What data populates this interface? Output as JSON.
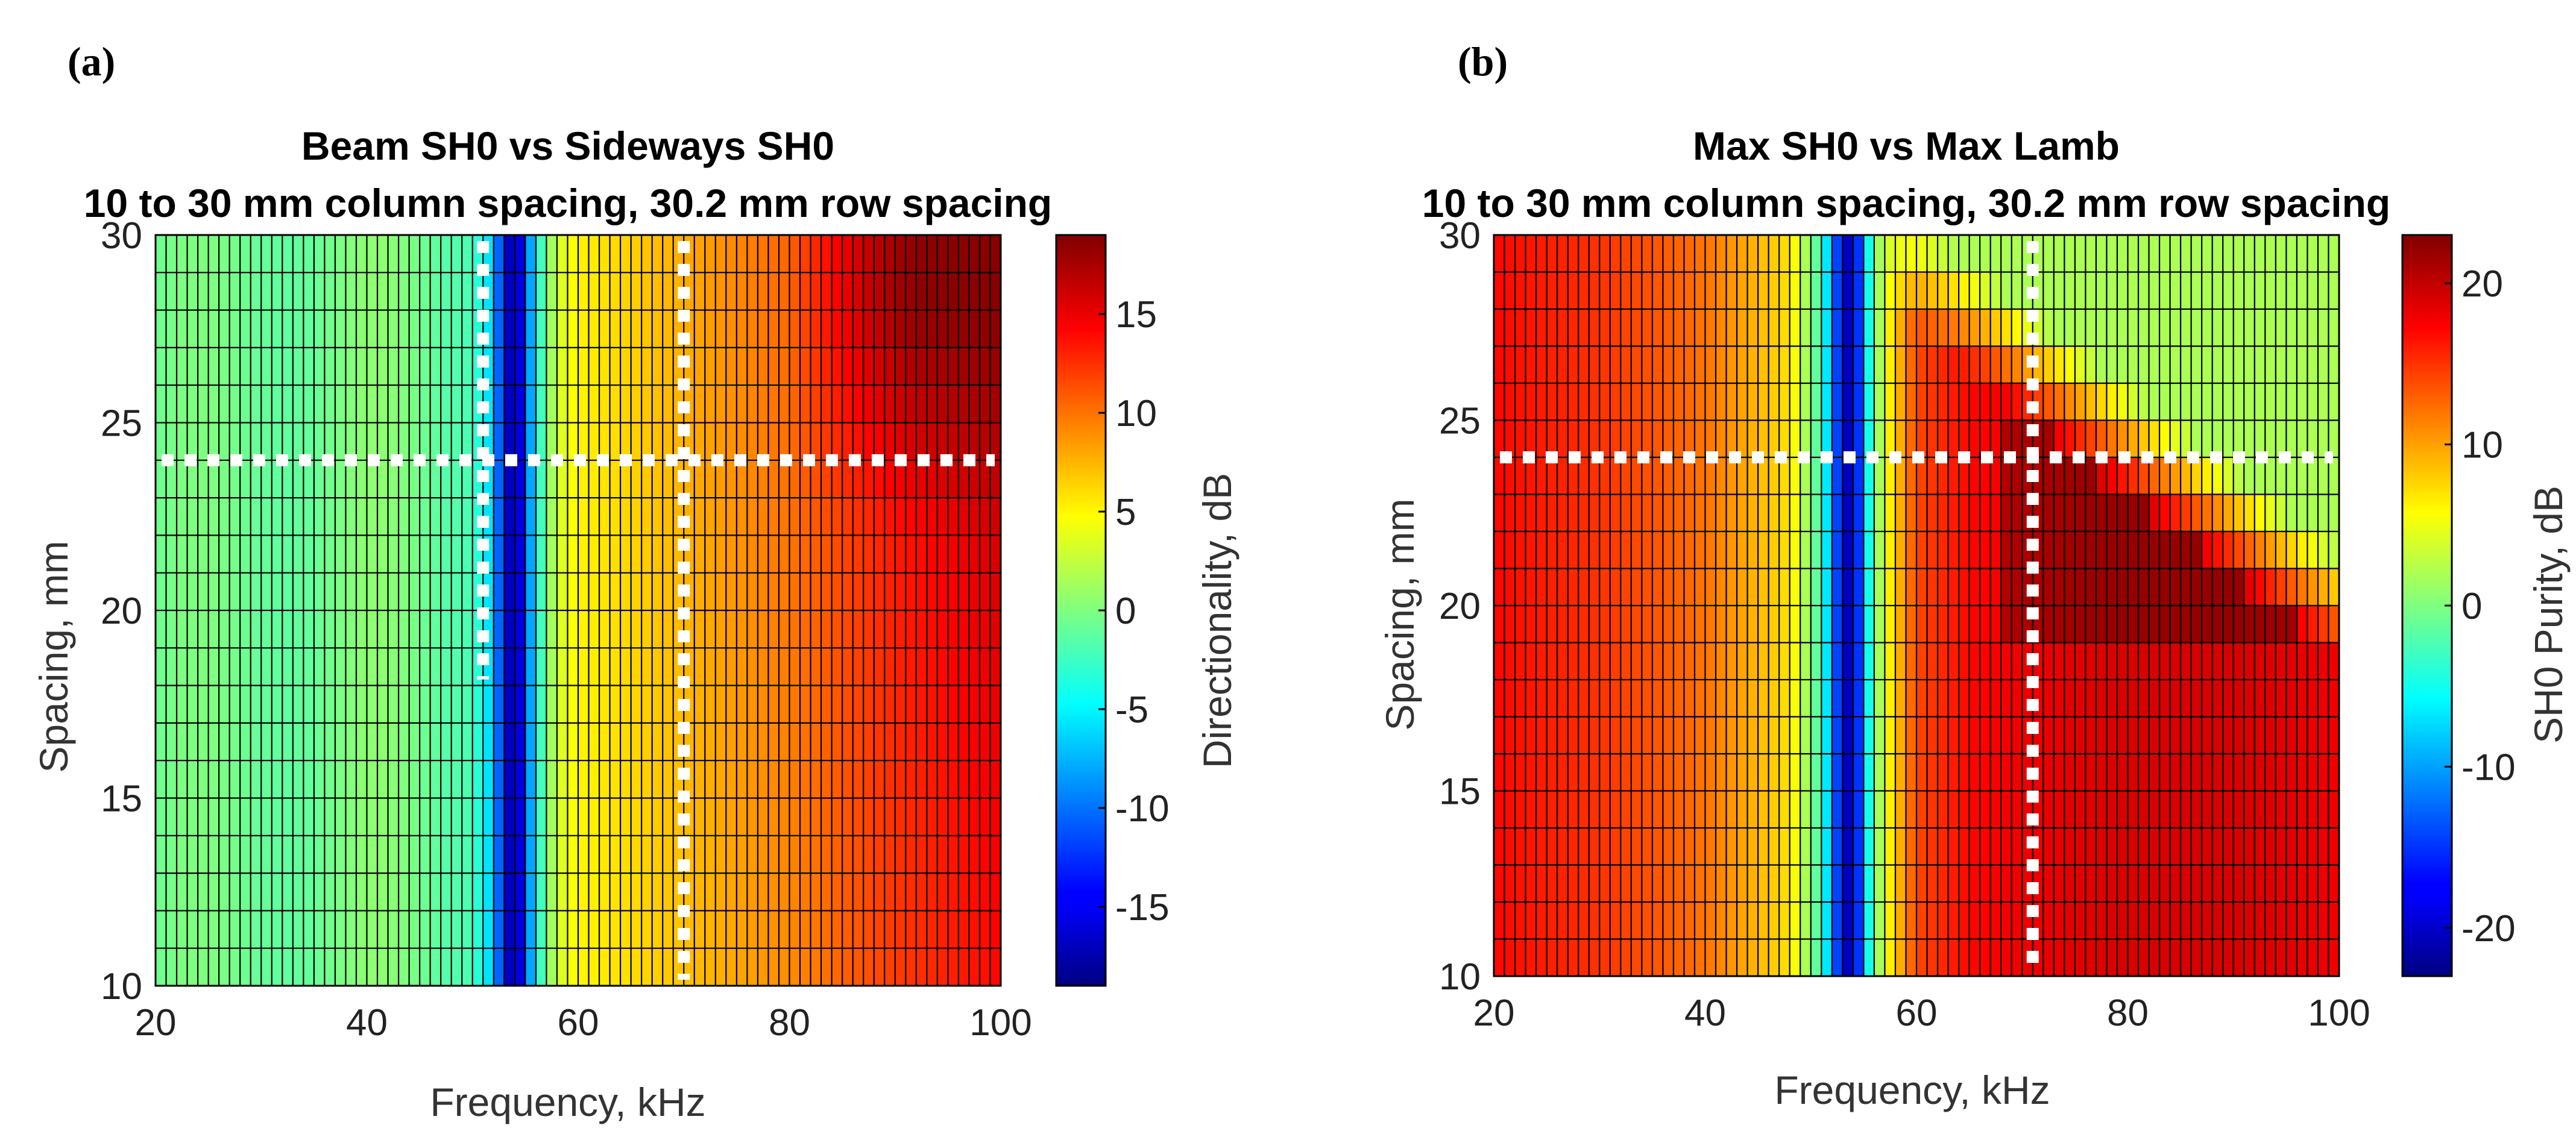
{
  "chart_data": [
    {
      "panel": "(a)",
      "type": "heatmap",
      "title": "Beam SH0 vs Sideways SH0",
      "subtitle": "10 to 30 mm column spacing, 30.2 mm row spacing",
      "xlabel": "Frequency, kHz",
      "ylabel": "Spacing, mm",
      "colorbar_label": "Directionality, dB",
      "xlim": [
        20,
        100
      ],
      "ylim": [
        10,
        30
      ],
      "clim": [
        -19,
        19
      ],
      "x_ticks": [
        "20",
        "40",
        "60",
        "80",
        "100"
      ],
      "y_ticks": [
        "10",
        "15",
        "20",
        "25",
        "30"
      ],
      "colorbar_ticks": [
        "15",
        "10",
        "5",
        "0",
        "-5",
        "-10",
        "-15"
      ],
      "colorbar_tick_values": [
        15,
        10,
        5,
        0,
        -5,
        -10,
        -15
      ],
      "frequency_profile": {
        "frequency_khz": [
          20,
          40,
          50,
          52,
          53,
          54,
          55,
          56,
          58,
          60,
          65,
          70,
          80,
          90,
          95,
          100
        ],
        "directionality_db": [
          -1,
          0,
          -2,
          -7,
          -14,
          -19,
          -12,
          -4,
          3,
          5,
          6,
          7,
          9,
          12,
          13,
          14
        ]
      },
      "high_region": {
        "frequency_khz": [
          85,
          100
        ],
        "spacing_mm": [
          24,
          30
        ],
        "peak_db": 19
      },
      "marker_lines": [
        {
          "orientation": "horizontal",
          "spacing_mm": 24
        },
        {
          "orientation": "vertical",
          "frequency_khz": 51,
          "spacing_mm_range": [
            18,
            30
          ]
        },
        {
          "orientation": "vertical",
          "frequency_khz": 70,
          "spacing_mm_range": [
            10,
            30
          ]
        }
      ]
    },
    {
      "panel": "(b)",
      "type": "heatmap",
      "title": "Max SH0 vs Max Lamb",
      "subtitle": "10 to 30 mm column spacing, 30.2 mm row spacing",
      "xlabel": "Frequency, kHz",
      "ylabel": "Spacing, mm",
      "colorbar_label": "SH0 Purity, dB",
      "xlim": [
        20,
        100
      ],
      "ylim": [
        10,
        30
      ],
      "clim": [
        -23,
        23
      ],
      "x_ticks": [
        "20",
        "40",
        "60",
        "80",
        "100"
      ],
      "y_ticks": [
        "10",
        "15",
        "20",
        "25",
        "30"
      ],
      "colorbar_ticks": [
        "20",
        "10",
        "0",
        "-10",
        "-20"
      ],
      "colorbar_tick_values": [
        20,
        10,
        0,
        -10,
        -20
      ],
      "frequency_profile": {
        "frequency_khz": [
          20,
          30,
          40,
          48,
          51,
          53,
          54,
          55,
          57,
          60,
          65,
          70,
          80,
          90,
          100
        ],
        "purity_db": [
          17,
          15,
          12,
          7,
          -3,
          -18,
          -22,
          -8,
          5,
          14,
          17,
          18,
          19,
          19,
          18
        ]
      },
      "marker_lines": [
        {
          "orientation": "horizontal",
          "spacing_mm": 24
        },
        {
          "orientation": "vertical",
          "frequency_khz": 71,
          "spacing_mm_range": [
            10,
            30
          ]
        }
      ]
    }
  ]
}
